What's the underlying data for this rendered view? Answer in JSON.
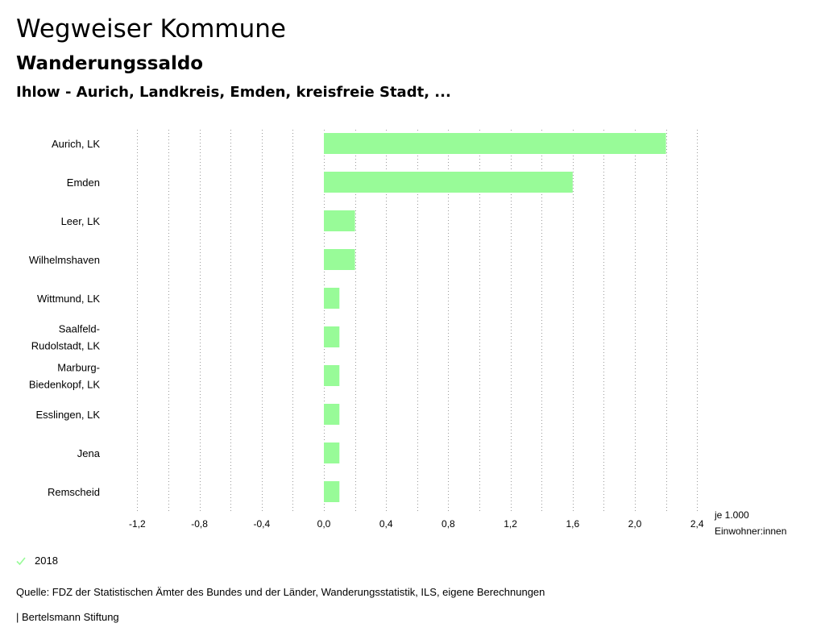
{
  "header": {
    "title": "Wegweiser Kommune",
    "subtitle": "Wanderungssaldo",
    "regions": "Ihlow - Aurich, Landkreis, Emden, kreisfreie Stadt, ..."
  },
  "chart_data": {
    "type": "bar",
    "orientation": "horizontal",
    "categories": [
      "Aurich, LK",
      "Emden",
      "Leer, LK",
      "Wilhelmshaven",
      "Wittmund, LK",
      "Saalfeld-Rudolstadt, LK",
      "Marburg-Biedenkopf, LK",
      "Esslingen, LK",
      "Jena",
      "Remscheid"
    ],
    "category_lines": [
      [
        "Aurich, LK"
      ],
      [
        "Emden"
      ],
      [
        "Leer, LK"
      ],
      [
        "Wilhelmshaven"
      ],
      [
        "Wittmund, LK"
      ],
      [
        "Saalfeld-",
        "Rudolstadt, LK"
      ],
      [
        "Marburg-",
        "Biedenkopf, LK"
      ],
      [
        "Esslingen, LK"
      ],
      [
        "Jena"
      ],
      [
        "Remscheid"
      ]
    ],
    "series": [
      {
        "name": "2018",
        "color": "#98fb98",
        "values": [
          2.2,
          1.6,
          0.2,
          0.2,
          0.1,
          0.1,
          0.1,
          0.1,
          0.1,
          0.1
        ]
      }
    ],
    "xlim": [
      -1.4,
      2.5
    ],
    "x_ticks": [
      -1.2,
      -0.8,
      -0.4,
      0.0,
      0.4,
      0.8,
      1.2,
      1.6,
      2.0,
      2.4
    ],
    "x_tick_labels": [
      "-1,2",
      "-0,8",
      "-0,4",
      "0,0",
      "0,4",
      "0,8",
      "1,2",
      "1,6",
      "2,0",
      "2,4"
    ],
    "grid_step": 0.2,
    "unit_lines": [
      "je 1.000",
      "Einwohner:innen"
    ],
    "grid": true
  },
  "legend": {
    "items": [
      {
        "label": "2018",
        "color": "#98fb98",
        "icon": "checkmark-icon"
      }
    ]
  },
  "footer": {
    "source": "Quelle: FDZ der Statistischen Ämter des Bundes und der Länder, Wanderungsstatistik, ILS, eigene Berechnungen",
    "publisher": "| Bertelsmann Stiftung"
  }
}
